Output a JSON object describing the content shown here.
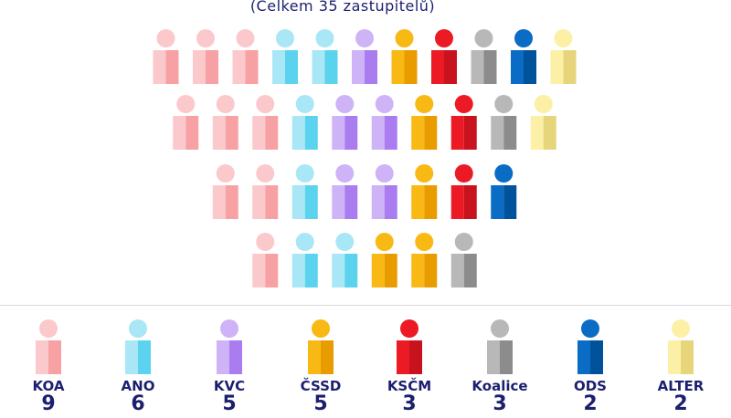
{
  "subtitle": "(Celkem 35 zastupitelů)",
  "chart_data": {
    "type": "bar",
    "subtitle": "(Celkem 35 zastupitelů)",
    "total": 35,
    "series": [
      {
        "name": "KOA",
        "value": 9,
        "color": "#f7a1a4",
        "light": "#fbc9cb"
      },
      {
        "name": "ANO",
        "value": 6,
        "color": "#5bd2ee",
        "light": "#a9e7f6"
      },
      {
        "name": "KVC",
        "value": 5,
        "color": "#a97cf0",
        "light": "#cfb3f7"
      },
      {
        "name": "ČSSD",
        "value": 5,
        "color": "#e89c00",
        "light": "#f9b914"
      },
      {
        "name": "KSČM",
        "value": 3,
        "color": "#c8131e",
        "light": "#ec1a24"
      },
      {
        "name": "Koalice",
        "value": 3,
        "color": "#8c8c8c",
        "light": "#b8b8b8"
      },
      {
        "name": "ODS",
        "value": 2,
        "color": "#00529b",
        "light": "#0a6cc4"
      },
      {
        "name": "ALTER",
        "value": 2,
        "color": "#e6d57a",
        "light": "#fbf0a6"
      }
    ],
    "rows": [
      [
        "KOA",
        "KOA",
        "KOA",
        "ANO",
        "ANO",
        "KVC",
        "ČSSD",
        "KSČM",
        "Koalice",
        "ODS",
        "ALTER"
      ],
      [
        "KOA",
        "KOA",
        "KOA",
        "ANO",
        "KVC",
        "KVC",
        "ČSSD",
        "KSČM",
        "Koalice",
        "ALTER"
      ],
      [
        "KOA",
        "KOA",
        "ANO",
        "KVC",
        "KVC",
        "ČSSD",
        "KSČM",
        "ODS"
      ],
      [
        "KOA",
        "ANO",
        "ANO",
        "ČSSD",
        "ČSSD",
        "Koalice"
      ]
    ]
  }
}
